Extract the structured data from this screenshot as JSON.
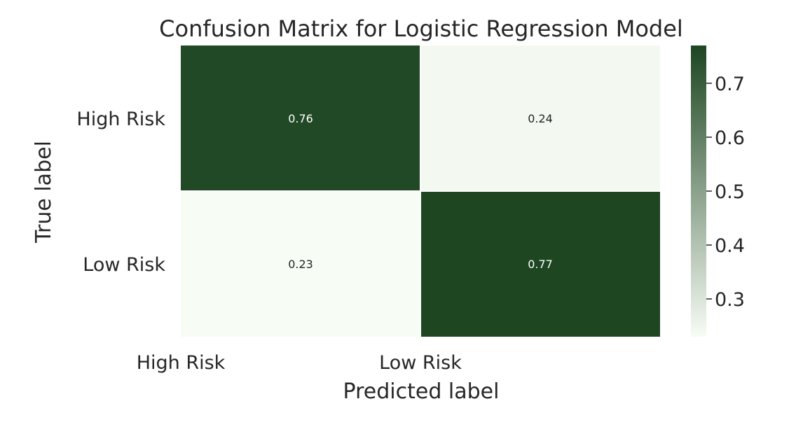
{
  "chart_data": {
    "type": "heatmap",
    "title": "Confusion Matrix for Logistic Regression Model",
    "xlabel": "Predicted label",
    "ylabel": "True label",
    "x_categories": [
      "High Risk",
      "Low Risk"
    ],
    "y_categories": [
      "High Risk",
      "Low Risk"
    ],
    "values": [
      [
        0.76,
        0.24
      ],
      [
        0.23,
        0.77
      ]
    ],
    "value_labels": [
      [
        "0.76",
        "0.24"
      ],
      [
        "0.23",
        "0.77"
      ]
    ],
    "colormap": "Greens",
    "colorbar": {
      "min": 0.23,
      "max": 0.77,
      "ticks": [
        0.3,
        0.4,
        0.5,
        0.6,
        0.7
      ],
      "tick_labels": [
        "0.3",
        "0.4",
        "0.5",
        "0.6",
        "0.7"
      ],
      "low_color": "#f7fcf5",
      "high_color": "#1d4621"
    },
    "grid": false
  }
}
